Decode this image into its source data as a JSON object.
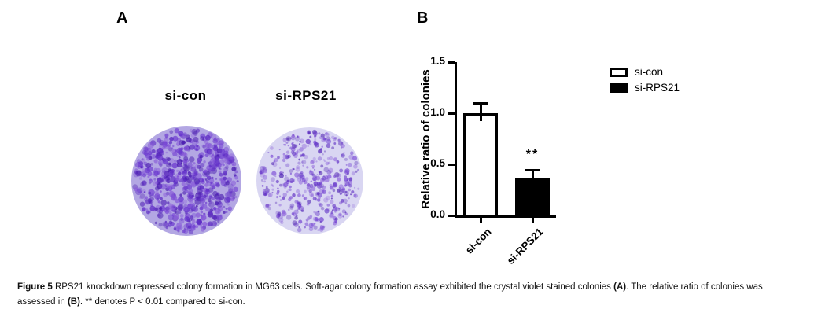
{
  "panel_a": {
    "label": "A",
    "dishes": [
      {
        "label": "si-con",
        "density": "dense",
        "base_color": "#b3a7e3",
        "palette": [
          "#5a28c2",
          "#6a37cf",
          "#7d4ed6",
          "#8a5ed9",
          "#4b1eb0"
        ]
      },
      {
        "label": "si-RPS21",
        "density": "sparse",
        "base_color": "#d9d6f2",
        "palette": [
          "#5a28c2",
          "#6a37cf",
          "#7d4ed6",
          "#8a5ed9",
          "#4b1eb0"
        ]
      }
    ]
  },
  "panel_b": {
    "label": "B"
  },
  "chart_data": {
    "type": "bar",
    "categories": [
      "si-con",
      "si-RPS21"
    ],
    "values": [
      1.0,
      0.37
    ],
    "errors": [
      0.1,
      0.08
    ],
    "significance": [
      "",
      "**"
    ],
    "bar_colors": [
      "#ffffff",
      "#000000"
    ],
    "title": "",
    "xlabel": "",
    "ylabel": "Relative ratio of colonies",
    "ylim": [
      0,
      1.5
    ],
    "yticks": [
      {
        "value": 0,
        "label": "0.0"
      },
      {
        "value": 0.5,
        "label": "0.5"
      },
      {
        "value": 1,
        "label": "1.0"
      },
      {
        "value": 1.5,
        "label": "1.5"
      }
    ],
    "grid": false,
    "legend_position": "right",
    "legend": [
      {
        "label": "si-con",
        "color": "#ffffff"
      },
      {
        "label": "si-RPS21",
        "color": "#000000"
      }
    ]
  },
  "caption": {
    "segments": [
      {
        "text": "Figure 5 ",
        "bold": true
      },
      {
        "text": "RPS21 knockdown repressed colony formation in MG63 cells. Soft-agar colony formation assay exhibited the crystal violet stained colonies ",
        "bold": false
      },
      {
        "text": "(A)",
        "bold": true
      },
      {
        "text": ". The relative ratio of colonies was assessed in ",
        "bold": false
      },
      {
        "text": "(B)",
        "bold": true
      },
      {
        "text": ". ** denotes P < 0.01 compared to si-con.",
        "bold": false
      }
    ]
  }
}
